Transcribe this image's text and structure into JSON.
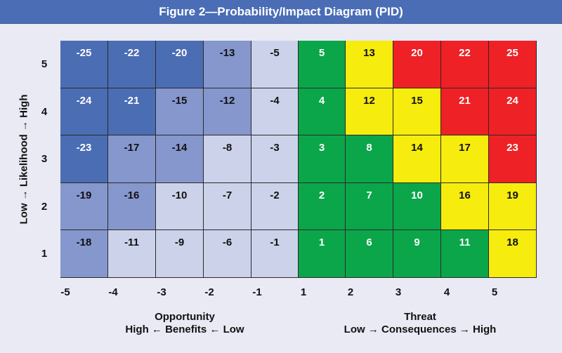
{
  "header": {
    "title": "Figure 2—Probability/Impact Diagram (PID)"
  },
  "colors": {
    "blue_dark": "#4b6db4",
    "blue_mid": "#8597cc",
    "blue_light": "#ccd2ea",
    "green": "#0ba64a",
    "yellow": "#f6ec0d",
    "red": "#ee2126",
    "banner": "#4a6db5"
  },
  "y_axis": {
    "title": "Low → Likelihood → High",
    "ticks": [
      "5",
      "4",
      "3",
      "2",
      "1"
    ]
  },
  "x_axis": {
    "ticks": [
      "-5",
      "-4",
      "-3",
      "-2",
      "-1",
      "1",
      "2",
      "3",
      "4",
      "5"
    ],
    "left_caption": {
      "line1": "Opportunity",
      "line2": "High ← Benefits ← Low"
    },
    "right_caption": {
      "line1": "Threat",
      "line2": "Low → Consequences → High"
    }
  },
  "chart_data": {
    "type": "heatmap",
    "title": "Figure 2—Probability/Impact Diagram (PID)",
    "ylabel": "Low → Likelihood → High",
    "x_categories": [
      "-5",
      "-4",
      "-3",
      "-2",
      "-1",
      "1",
      "2",
      "3",
      "4",
      "5"
    ],
    "y_categories": [
      "5",
      "4",
      "3",
      "2",
      "1"
    ],
    "values": [
      [
        -25,
        -22,
        -20,
        -13,
        -5,
        5,
        13,
        20,
        22,
        25
      ],
      [
        -24,
        -21,
        -15,
        -12,
        -4,
        4,
        12,
        15,
        21,
        24
      ],
      [
        -23,
        -17,
        -14,
        -8,
        -3,
        3,
        8,
        14,
        17,
        23
      ],
      [
        -19,
        -16,
        -10,
        -7,
        -2,
        2,
        7,
        10,
        16,
        19
      ],
      [
        -18,
        -11,
        -9,
        -6,
        -1,
        1,
        6,
        9,
        11,
        18
      ]
    ],
    "color_keys": [
      [
        "blue_dark",
        "blue_dark",
        "blue_dark",
        "blue_mid",
        "blue_light",
        "green",
        "yellow",
        "red",
        "red",
        "red"
      ],
      [
        "blue_dark",
        "blue_dark",
        "blue_mid",
        "blue_mid",
        "blue_light",
        "green",
        "yellow",
        "yellow",
        "red",
        "red"
      ],
      [
        "blue_dark",
        "blue_mid",
        "blue_mid",
        "blue_light",
        "blue_light",
        "green",
        "green",
        "yellow",
        "yellow",
        "red"
      ],
      [
        "blue_mid",
        "blue_mid",
        "blue_light",
        "blue_light",
        "blue_light",
        "green",
        "green",
        "green",
        "yellow",
        "yellow"
      ],
      [
        "blue_mid",
        "blue_light",
        "blue_light",
        "blue_light",
        "blue_light",
        "green",
        "green",
        "green",
        "green",
        "yellow"
      ]
    ]
  }
}
